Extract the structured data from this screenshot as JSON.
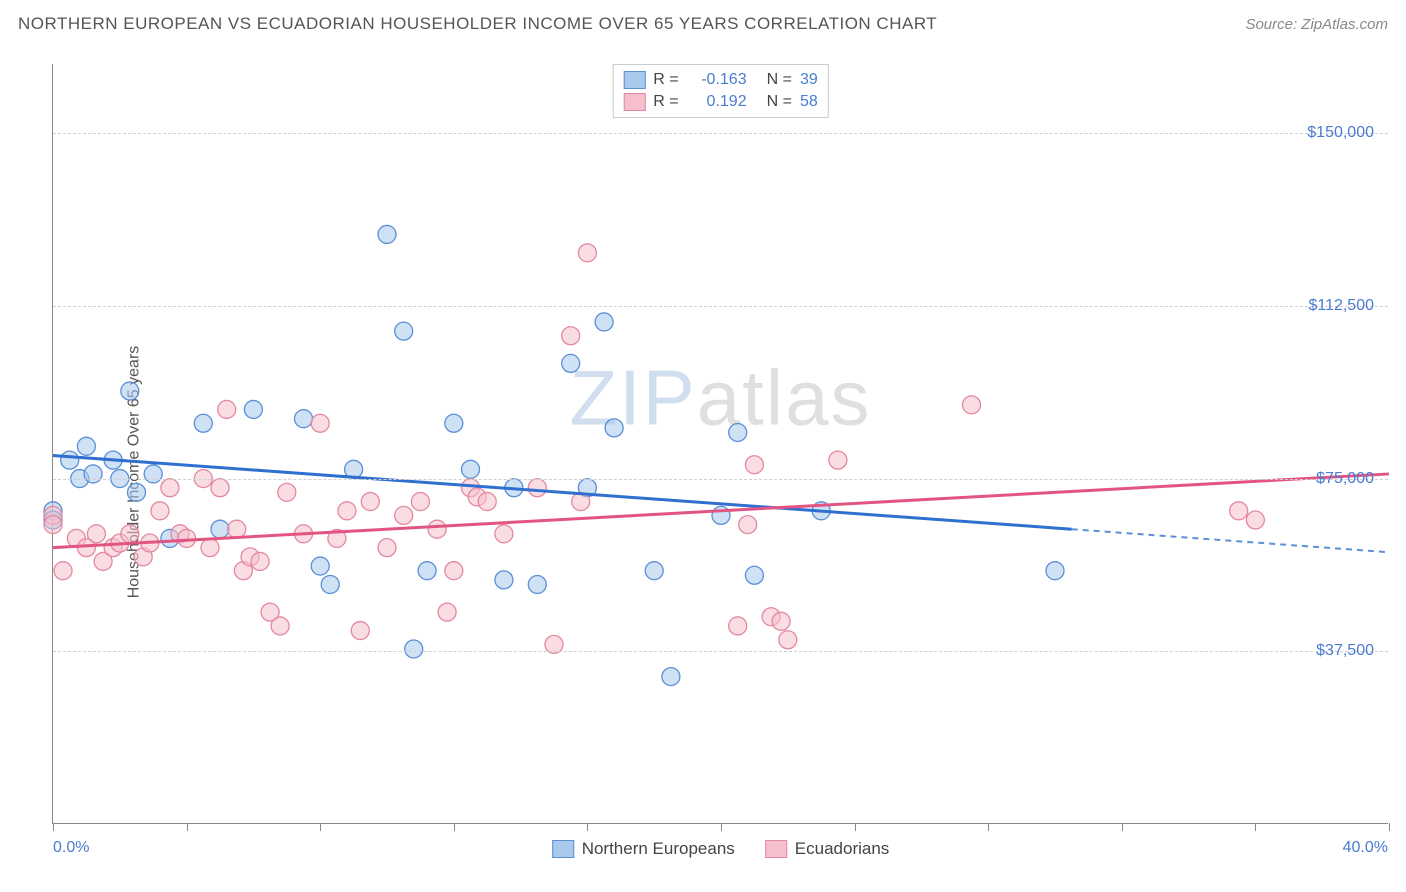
{
  "header": {
    "title": "NORTHERN EUROPEAN VS ECUADORIAN HOUSEHOLDER INCOME OVER 65 YEARS CORRELATION CHART",
    "source": "Source: ZipAtlas.com"
  },
  "watermark": {
    "part1": "ZIP",
    "part2": "atlas"
  },
  "chart": {
    "type": "scatter",
    "ylabel": "Householder Income Over 65 years",
    "background_color": "#ffffff",
    "grid_color": "#d0d0d0",
    "axis_color": "#888888",
    "marker_radius": 9,
    "marker_opacity": 0.55,
    "xlim": [
      0,
      40
    ],
    "ylim": [
      0,
      165000
    ],
    "xlim_labels": [
      "0.0%",
      "40.0%"
    ],
    "xtick_positions": [
      0,
      4,
      8,
      12,
      16,
      20,
      24,
      28,
      32,
      36,
      40
    ],
    "yticks": [
      {
        "value": 37500,
        "label": "$37,500"
      },
      {
        "value": 75000,
        "label": "$75,000"
      },
      {
        "value": 112500,
        "label": "$112,500"
      },
      {
        "value": 150000,
        "label": "$150,000"
      }
    ],
    "series": [
      {
        "name": "Northern Europeans",
        "fill_color": "#a8c8ec",
        "stroke_color": "#5b8fd6",
        "line_color": "#2f6fd0",
        "R": "-0.163",
        "N": "39",
        "trend": {
          "x1": 0,
          "y1": 80000,
          "x2": 30.5,
          "y2": 64000,
          "dash_x2": 40,
          "dash_y2": 59000
        },
        "points": [
          [
            0.0,
            68000
          ],
          [
            0.0,
            66000
          ],
          [
            0.5,
            79000
          ],
          [
            0.8,
            75000
          ],
          [
            1.0,
            82000
          ],
          [
            1.2,
            76000
          ],
          [
            1.8,
            79000
          ],
          [
            2.0,
            75000
          ],
          [
            2.3,
            94000
          ],
          [
            2.5,
            72000
          ],
          [
            3.0,
            76000
          ],
          [
            3.5,
            62000
          ],
          [
            4.5,
            87000
          ],
          [
            5.0,
            64000
          ],
          [
            6.0,
            90000
          ],
          [
            7.5,
            88000
          ],
          [
            8.0,
            56000
          ],
          [
            8.3,
            52000
          ],
          [
            9.0,
            77000
          ],
          [
            10.0,
            128000
          ],
          [
            10.5,
            107000
          ],
          [
            10.8,
            38000
          ],
          [
            11.2,
            55000
          ],
          [
            12.0,
            87000
          ],
          [
            12.5,
            77000
          ],
          [
            13.5,
            53000
          ],
          [
            13.8,
            73000
          ],
          [
            14.5,
            52000
          ],
          [
            15.5,
            100000
          ],
          [
            16.0,
            73000
          ],
          [
            16.5,
            109000
          ],
          [
            16.8,
            86000
          ],
          [
            18.0,
            55000
          ],
          [
            18.5,
            32000
          ],
          [
            20.0,
            67000
          ],
          [
            20.5,
            85000
          ],
          [
            21.0,
            54000
          ],
          [
            23.0,
            68000
          ],
          [
            30.0,
            55000
          ]
        ]
      },
      {
        "name": "Ecuadorians",
        "fill_color": "#f5c0cc",
        "stroke_color": "#e388a0",
        "line_color": "#e25582",
        "R": "0.192",
        "N": "58",
        "trend": {
          "x1": 0,
          "y1": 60000,
          "x2": 40,
          "y2": 76000
        },
        "points": [
          [
            0.0,
            67000
          ],
          [
            0.0,
            65000
          ],
          [
            0.3,
            55000
          ],
          [
            0.7,
            62000
          ],
          [
            1.0,
            60000
          ],
          [
            1.3,
            63000
          ],
          [
            1.5,
            57000
          ],
          [
            1.8,
            60000
          ],
          [
            2.0,
            61000
          ],
          [
            2.3,
            63000
          ],
          [
            2.7,
            58000
          ],
          [
            2.9,
            61000
          ],
          [
            3.2,
            68000
          ],
          [
            3.5,
            73000
          ],
          [
            3.8,
            63000
          ],
          [
            4.0,
            62000
          ],
          [
            4.5,
            75000
          ],
          [
            4.7,
            60000
          ],
          [
            5.0,
            73000
          ],
          [
            5.2,
            90000
          ],
          [
            5.5,
            64000
          ],
          [
            5.7,
            55000
          ],
          [
            5.9,
            58000
          ],
          [
            6.2,
            57000
          ],
          [
            6.5,
            46000
          ],
          [
            6.8,
            43000
          ],
          [
            7.0,
            72000
          ],
          [
            7.5,
            63000
          ],
          [
            8.0,
            87000
          ],
          [
            8.5,
            62000
          ],
          [
            8.8,
            68000
          ],
          [
            9.2,
            42000
          ],
          [
            9.5,
            70000
          ],
          [
            10.0,
            60000
          ],
          [
            10.5,
            67000
          ],
          [
            11.0,
            70000
          ],
          [
            11.5,
            64000
          ],
          [
            11.8,
            46000
          ],
          [
            12.0,
            55000
          ],
          [
            12.5,
            73000
          ],
          [
            12.7,
            71000
          ],
          [
            13.0,
            70000
          ],
          [
            13.5,
            63000
          ],
          [
            14.5,
            73000
          ],
          [
            15.5,
            106000
          ],
          [
            15.0,
            39000
          ],
          [
            15.8,
            70000
          ],
          [
            16.0,
            124000
          ],
          [
            20.5,
            43000
          ],
          [
            20.8,
            65000
          ],
          [
            21.0,
            78000
          ],
          [
            21.5,
            45000
          ],
          [
            21.8,
            44000
          ],
          [
            22.0,
            40000
          ],
          [
            23.5,
            79000
          ],
          [
            27.5,
            91000
          ],
          [
            35.5,
            68000
          ],
          [
            36.0,
            66000
          ]
        ]
      }
    ],
    "legend_top": {
      "r_label": "R =",
      "n_label": "N ="
    },
    "legend_bottom_names": [
      "Northern Europeans",
      "Ecuadorians"
    ]
  }
}
